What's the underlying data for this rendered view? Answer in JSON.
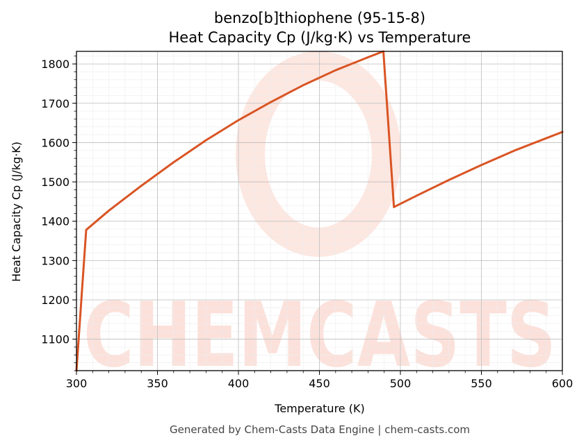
{
  "chart_data": {
    "type": "line",
    "title": "benzo[b]thiophene (95-15-8)",
    "subtitle": "Heat Capacity Cp (J/kg·K) vs Temperature",
    "xlabel": "Temperature (K)",
    "ylabel": "Heat Capacity Cp (J/kg·K)",
    "xlim": [
      300,
      600
    ],
    "ylim": [
      1020,
      1832
    ],
    "xticks": [
      300,
      350,
      400,
      450,
      500,
      550,
      600
    ],
    "yticks": [
      1100,
      1200,
      1300,
      1400,
      1500,
      1600,
      1700,
      1800
    ],
    "grid": true,
    "line_color": "#d95424",
    "series": [
      {
        "x": [
          300,
          306,
          320,
          340,
          360,
          380,
          400,
          420,
          440,
          460,
          480,
          489.5,
          496,
          510,
          530,
          550,
          570,
          590,
          600
        ],
        "y": [
          1020,
          1378,
          1427,
          1490,
          1550,
          1606,
          1657,
          1703,
          1746,
          1784,
          1817,
          1832,
          1436,
          1465,
          1505,
          1543,
          1579,
          1611,
          1627
        ]
      }
    ]
  },
  "watermark": "CHEMCASTS",
  "footer": "Generated by Chem-Casts Data Engine | chem-casts.com"
}
